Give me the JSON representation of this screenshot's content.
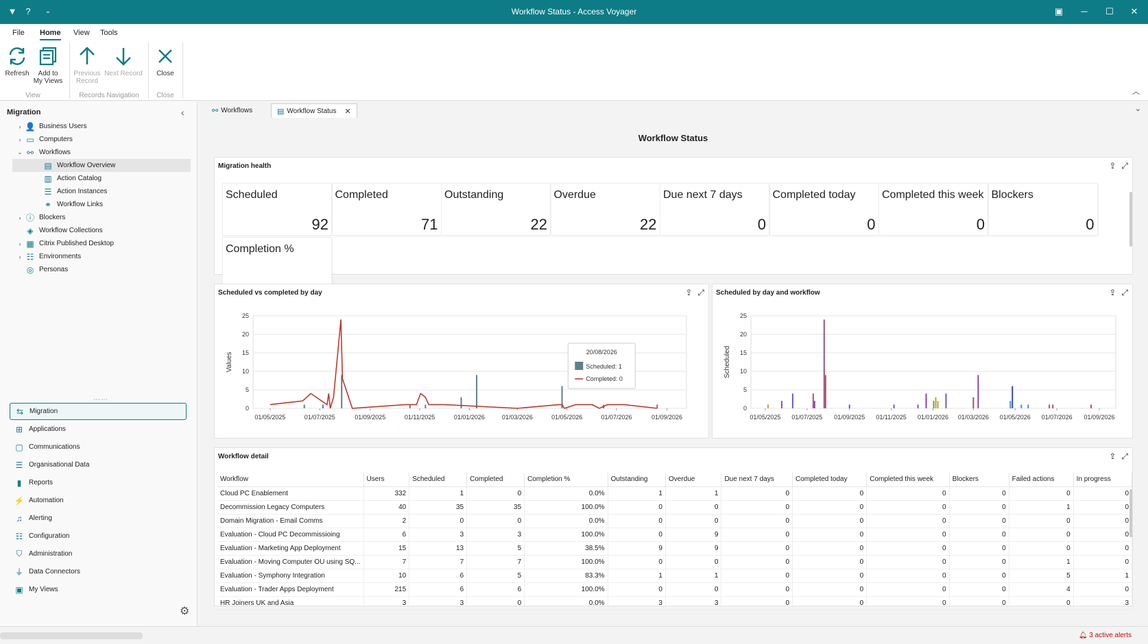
{
  "window": {
    "title": "Workflow Status - Access Voyager"
  },
  "menu": {
    "items": [
      "File",
      "Home",
      "View",
      "Tools"
    ],
    "active": "Home"
  },
  "ribbon": {
    "refresh": "Refresh",
    "add_to_views_1": "Add to",
    "add_to_views_2": "My Views",
    "prev_1": "Previous",
    "prev_2": "Record",
    "next": "Next Record",
    "close": "Close",
    "group_view": "View",
    "group_nav": "Records Navigation",
    "group_close": "Close"
  },
  "sidebar": {
    "title": "Migration",
    "tree": [
      {
        "label": "Business Users",
        "icon": "users-icon"
      },
      {
        "label": "Computers",
        "icon": "monitor-icon"
      },
      {
        "label": "Workflows",
        "icon": "workflow-icon"
      },
      {
        "label": "Workflow Overview",
        "icon": "table-icon"
      },
      {
        "label": "Action Catalog",
        "icon": "catalog-icon"
      },
      {
        "label": "Action Instances",
        "icon": "list-icon"
      },
      {
        "label": "Workflow Links",
        "icon": "link-icon"
      },
      {
        "label": "Blockers",
        "icon": "info-icon"
      },
      {
        "label": "Workflow Collections",
        "icon": "layers-icon"
      },
      {
        "label": "Citrix Published Desktop",
        "icon": "desktop-icon"
      },
      {
        "label": "Environments",
        "icon": "server-icon"
      },
      {
        "label": "Personas",
        "icon": "persona-icon"
      }
    ],
    "nav": [
      "Migration",
      "Applications",
      "Communications",
      "Organisational Data",
      "Reports",
      "Automation",
      "Alerting",
      "Configuration",
      "Administration",
      "Data Connectors",
      "My Views"
    ]
  },
  "tabs": [
    {
      "label": "Workflows",
      "icon": "workflow-icon"
    },
    {
      "label": "Workflow Status",
      "icon": "table-icon"
    }
  ],
  "page": {
    "title": "Workflow Status"
  },
  "health": {
    "title": "Migration health",
    "kpis": [
      {
        "label": "Scheduled",
        "value": "92"
      },
      {
        "label": "Completed",
        "value": "71"
      },
      {
        "label": "Outstanding",
        "value": "22"
      },
      {
        "label": "Overdue",
        "value": "22"
      },
      {
        "label": "Due next 7 days",
        "value": "0"
      },
      {
        "label": "Completed today",
        "value": "0"
      },
      {
        "label": "Completed this week",
        "value": "0"
      },
      {
        "label": "Blockers",
        "value": "0"
      },
      {
        "label": "Completion %",
        "value": ""
      }
    ]
  },
  "chart1_panel": {
    "title": "Scheduled vs completed by day"
  },
  "chart2_panel": {
    "title": "Scheduled by day and workflow"
  },
  "chart_data": [
    {
      "type": "line",
      "title": "Scheduled vs completed by day",
      "xlabel": "",
      "ylabel": "Values",
      "ylim": [
        0,
        25
      ],
      "yticks": [
        0,
        5,
        10,
        15,
        20,
        25
      ],
      "xticks": [
        "01/05/2025",
        "01/07/2025",
        "01/09/2025",
        "01/11/2025",
        "01/01/2026",
        "01/03/2026",
        "01/05/2026",
        "01/07/2026",
        "01/09/2026"
      ],
      "xrange": [
        "2025-04-10",
        "2026-09-25"
      ],
      "grid": true,
      "series": [
        {
          "name": "Scheduled",
          "type": "bar",
          "color": "#5b7f8e",
          "points": [
            [
              "2025-06-12",
              1
            ],
            [
              "2025-07-05",
              1
            ],
            [
              "2025-07-28",
              9
            ],
            [
              "2025-10-20",
              1
            ],
            [
              "2025-11-08",
              1
            ],
            [
              "2025-12-22",
              3
            ],
            [
              "2026-01-10",
              9
            ],
            [
              "2026-04-25",
              6
            ],
            [
              "2026-06-15",
              1
            ],
            [
              "2026-08-20",
              1
            ]
          ]
        },
        {
          "name": "Completed",
          "type": "line",
          "color": "#c0392b",
          "points": [
            [
              "2025-05-01",
              1
            ],
            [
              "2025-06-10",
              2
            ],
            [
              "2025-06-20",
              4
            ],
            [
              "2025-07-10",
              1
            ],
            [
              "2025-07-12",
              4
            ],
            [
              "2025-07-14",
              0
            ],
            [
              "2025-07-18",
              3
            ],
            [
              "2025-07-27",
              24
            ],
            [
              "2025-07-29",
              8
            ],
            [
              "2025-08-10",
              0
            ],
            [
              "2025-10-15",
              1
            ],
            [
              "2025-10-28",
              1
            ],
            [
              "2025-11-02",
              4
            ],
            [
              "2025-11-08",
              3
            ],
            [
              "2025-11-12",
              1
            ],
            [
              "2025-12-01",
              1
            ],
            [
              "2026-03-01",
              0
            ],
            [
              "2026-04-22",
              1
            ],
            [
              "2026-04-25",
              1
            ],
            [
              "2026-04-28",
              0
            ],
            [
              "2026-05-12",
              1
            ],
            [
              "2026-06-01",
              1
            ],
            [
              "2026-06-10",
              0
            ],
            [
              "2026-06-20",
              1
            ],
            [
              "2026-07-10",
              1
            ],
            [
              "2026-08-20",
              0
            ]
          ]
        }
      ],
      "tooltip": {
        "date": "20/08/2026",
        "lines": [
          "Scheduled: 1",
          "Completed: 0"
        ]
      }
    },
    {
      "type": "bar",
      "title": "Scheduled by day and workflow",
      "xlabel": "",
      "ylabel": "Scheduled",
      "ylim": [
        0,
        25
      ],
      "yticks": [
        0,
        5,
        10,
        15,
        20,
        25
      ],
      "xticks": [
        "01/05/2025",
        "01/07/2025",
        "01/09/2025",
        "01/11/2025",
        "01/01/2026",
        "01/03/2026",
        "01/05/2026",
        "01/07/2026",
        "01/09/2026"
      ],
      "xrange": [
        "2025-04-10",
        "2026-09-25"
      ],
      "grid": true,
      "bars": [
        {
          "x": "2025-05-05",
          "y": 1,
          "color": "#c9a227"
        },
        {
          "x": "2025-05-25",
          "y": 2,
          "color": "#6a5acd"
        },
        {
          "x": "2025-06-10",
          "y": 4,
          "color": "#6a5acd"
        },
        {
          "x": "2025-07-10",
          "y": 4,
          "color": "#a0527a"
        },
        {
          "x": "2025-07-12",
          "y": 2,
          "color": "#8e44ad"
        },
        {
          "x": "2025-07-26",
          "y": 24,
          "color": "#a0527a"
        },
        {
          "x": "2025-07-28",
          "y": 9,
          "color": "#a0527a"
        },
        {
          "x": "2025-09-01",
          "y": 1,
          "color": "#6a5acd"
        },
        {
          "x": "2025-11-05",
          "y": 1,
          "color": "#6a5acd"
        },
        {
          "x": "2025-12-10",
          "y": 1,
          "color": "#6a5acd"
        },
        {
          "x": "2025-12-22",
          "y": 4,
          "color": "#8e44ad"
        },
        {
          "x": "2026-01-02",
          "y": 2,
          "color": "#4caf50"
        },
        {
          "x": "2026-01-05",
          "y": 3,
          "color": "#c9a227"
        },
        {
          "x": "2026-01-08",
          "y": 2,
          "color": "#c9a227"
        },
        {
          "x": "2026-01-20",
          "y": 4,
          "color": "#6a5acd"
        },
        {
          "x": "2026-03-01",
          "y": 3,
          "color": "#a0527a"
        },
        {
          "x": "2026-03-08",
          "y": 9,
          "color": "#8e44ad"
        },
        {
          "x": "2026-04-24",
          "y": 2,
          "color": "#4a90d9"
        },
        {
          "x": "2026-04-27",
          "y": 6,
          "color": "#2e4a9e"
        },
        {
          "x": "2026-05-10",
          "y": 1,
          "color": "#4a90d9"
        },
        {
          "x": "2026-05-20",
          "y": 1,
          "color": "#4a90d9"
        },
        {
          "x": "2026-06-20",
          "y": 1,
          "color": "#a0527a"
        },
        {
          "x": "2026-06-25",
          "y": 1,
          "color": "#a0527a"
        },
        {
          "x": "2026-08-20",
          "y": 1,
          "color": "#a0527a"
        }
      ]
    }
  ],
  "detail": {
    "title": "Workflow detail",
    "columns": [
      "Workflow",
      "Users",
      "Scheduled",
      "Completed",
      "Completion %",
      "Outstanding",
      "Overdue",
      "Due next 7 days",
      "Completed today",
      "Completed this week",
      "Blockers",
      "Failed actions",
      "In progress"
    ],
    "rows": [
      [
        "Cloud PC Enablement",
        "332",
        "1",
        "0",
        "0.0%",
        "1",
        "1",
        "0",
        "0",
        "0",
        "0",
        "0",
        "0"
      ],
      [
        "Decommission Legacy Computers",
        "40",
        "35",
        "35",
        "100.0%",
        "0",
        "0",
        "0",
        "0",
        "0",
        "0",
        "1",
        "0"
      ],
      [
        "Domain Migration - Email Comms",
        "2",
        "0",
        "0",
        "0.0%",
        "0",
        "0",
        "0",
        "0",
        "0",
        "0",
        "0",
        "0"
      ],
      [
        "Evaluation - Cloud PC Decommissioing",
        "6",
        "3",
        "3",
        "100.0%",
        "0",
        "9",
        "0",
        "0",
        "0",
        "0",
        "0",
        "0"
      ],
      [
        "Evaluation - Marketing App Deployment",
        "15",
        "13",
        "5",
        "38.5%",
        "9",
        "9",
        "0",
        "0",
        "0",
        "0",
        "0",
        "0"
      ],
      [
        "Evaluation - Moving Computer OU using SQ...",
        "7",
        "7",
        "7",
        "100.0%",
        "0",
        "0",
        "0",
        "0",
        "0",
        "0",
        "1",
        "0"
      ],
      [
        "Evaluation - Symphony Integration",
        "10",
        "6",
        "5",
        "83.3%",
        "1",
        "1",
        "0",
        "0",
        "0",
        "0",
        "5",
        "1"
      ],
      [
        "Evaluation - Trader Apps Deployment",
        "215",
        "6",
        "6",
        "100.0%",
        "0",
        "0",
        "0",
        "0",
        "0",
        "0",
        "4",
        "0"
      ],
      [
        "HR Joiners UK and Asia",
        "3",
        "3",
        "0",
        "0.0%",
        "3",
        "3",
        "0",
        "0",
        "0",
        "0",
        "0",
        "3"
      ]
    ]
  },
  "status": {
    "alerts": "3 active alerts"
  },
  "colors": {
    "accent": "#0e7c86",
    "line": "#c0392b",
    "bar": "#5b7f8e"
  }
}
